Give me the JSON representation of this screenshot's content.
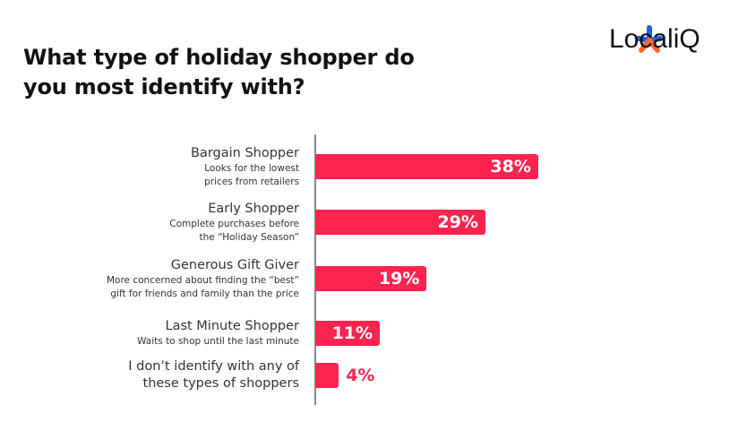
{
  "brand": "LocaliQ",
  "chart_data": {
    "type": "bar",
    "title": "What type of holiday shopper do you most identify with?",
    "categories": [
      "Bargain Shopper",
      "Early Shopper",
      "Generous Gift Giver",
      "Last Minute Shopper",
      "I don’t identify with any of these types of shoppers"
    ],
    "descriptions": [
      [
        "Looks for the lowest",
        "prices from retailers"
      ],
      [
        "Complete purchases before",
        "the “Holiday Season”"
      ],
      [
        "More concerned about finding the “best”",
        "gift for friends and family than the price"
      ],
      [
        "Waits to shop until the last minute"
      ],
      null
    ],
    "values": [
      38,
      29,
      19,
      11,
      4
    ],
    "value_labels": [
      "38%",
      "29%",
      "19%",
      "11%",
      "4%"
    ],
    "color": "#ff2350"
  }
}
